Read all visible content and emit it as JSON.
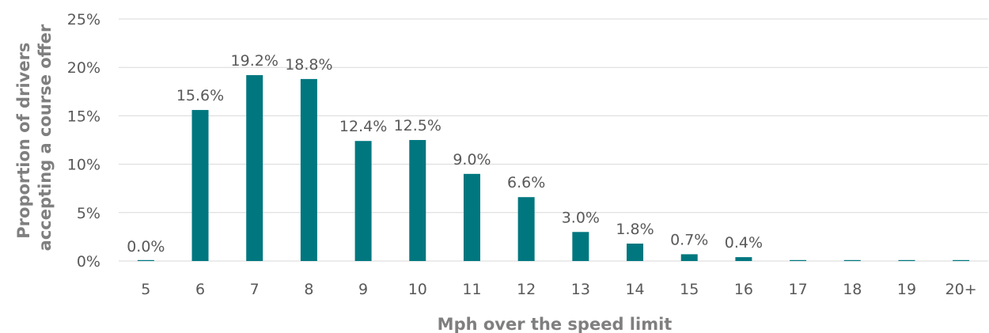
{
  "chart_data": {
    "type": "bar",
    "categories": [
      "5",
      "6",
      "7",
      "8",
      "9",
      "10",
      "11",
      "12",
      "13",
      "14",
      "15",
      "16",
      "17",
      "18",
      "19",
      "20+"
    ],
    "values": [
      0.0,
      15.6,
      19.2,
      18.8,
      12.4,
      12.5,
      9.0,
      6.6,
      3.0,
      1.8,
      0.7,
      0.4,
      0.0,
      0.0,
      0.0,
      0.0
    ],
    "data_labels": [
      "0.0%",
      "15.6%",
      "19.2%",
      "18.8%",
      "12.4%",
      "12.5%",
      "9.0%",
      "6.6%",
      "3.0%",
      "1.8%",
      "0.7%",
      "0.4%",
      "",
      "",
      "",
      ""
    ],
    "xlabel": "Mph over the speed limit",
    "ylabel_lines": [
      "Proportion of drivers",
      "accepting a course offer"
    ],
    "ylim": [
      0,
      25
    ],
    "y_ticks": [
      0,
      5,
      10,
      15,
      20,
      25
    ],
    "y_tick_labels": [
      "0%",
      "5%",
      "10%",
      "15%",
      "20%",
      "25%"
    ],
    "grid": true,
    "bar_color": "#00777f"
  }
}
